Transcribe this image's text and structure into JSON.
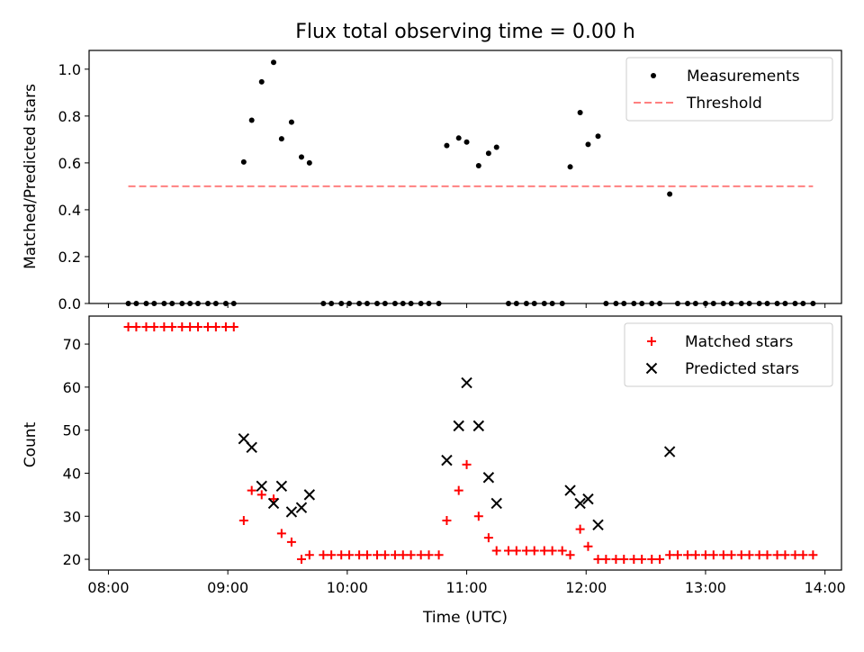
{
  "colors": {
    "matched": "#ff0000",
    "predicted": "#000000",
    "measurement": "#000000",
    "threshold": "#ff8080"
  },
  "chart_data": [
    {
      "type": "scatter",
      "title": "Flux total observing time = 0.00 h",
      "xlabel": "",
      "ylabel": "Matched/Predicted stars",
      "xlim": [
        "08:00",
        "14:00"
      ],
      "ylim": [
        0,
        1.08
      ],
      "yticks": [
        0.0,
        0.2,
        0.4,
        0.6,
        0.8,
        1.0
      ],
      "yticklabels": [
        "0.0",
        "0.2",
        "0.4",
        "0.6",
        "0.8",
        "1.0"
      ],
      "legend": "top-right",
      "grid": false,
      "series": [
        {
          "name": "Measurements",
          "marker": "dot",
          "points": [
            [
              "08:10",
              0.0
            ],
            [
              "08:14",
              0.0
            ],
            [
              "08:19",
              0.0
            ],
            [
              "08:23",
              0.0
            ],
            [
              "08:28",
              0.0
            ],
            [
              "08:32",
              0.0
            ],
            [
              "08:37",
              0.0
            ],
            [
              "08:41",
              0.0
            ],
            [
              "08:45",
              0.0
            ],
            [
              "08:50",
              0.0
            ],
            [
              "08:54",
              0.0
            ],
            [
              "08:59",
              0.0
            ],
            [
              "09:03",
              0.0
            ],
            [
              "09:08",
              0.604
            ],
            [
              "09:12",
              0.782
            ],
            [
              "09:17",
              0.946
            ],
            [
              "09:23",
              1.029
            ],
            [
              "09:27",
              0.703
            ],
            [
              "09:32",
              0.774
            ],
            [
              "09:37",
              0.625
            ],
            [
              "09:41",
              0.6
            ],
            [
              "09:48",
              0.0
            ],
            [
              "09:52",
              0.0
            ],
            [
              "09:57",
              0.0
            ],
            [
              "10:01",
              0.0
            ],
            [
              "10:06",
              0.0
            ],
            [
              "10:10",
              0.0
            ],
            [
              "10:15",
              0.0
            ],
            [
              "10:19",
              0.0
            ],
            [
              "10:24",
              0.0
            ],
            [
              "10:28",
              0.0
            ],
            [
              "10:32",
              0.0
            ],
            [
              "10:37",
              0.0
            ],
            [
              "10:41",
              0.0
            ],
            [
              "10:46",
              0.0
            ],
            [
              "10:50",
              0.674
            ],
            [
              "10:56",
              0.706
            ],
            [
              "11:00",
              0.689
            ],
            [
              "11:06",
              0.588
            ],
            [
              "11:11",
              0.641
            ],
            [
              "11:15",
              0.667
            ],
            [
              "11:21",
              0.0
            ],
            [
              "11:25",
              0.0
            ],
            [
              "11:30",
              0.0
            ],
            [
              "11:34",
              0.0
            ],
            [
              "11:39",
              0.0
            ],
            [
              "11:43",
              0.0
            ],
            [
              "11:48",
              0.0
            ],
            [
              "11:52",
              0.583
            ],
            [
              "11:57",
              0.815
            ],
            [
              "12:01",
              0.679
            ],
            [
              "12:06",
              0.714
            ],
            [
              "12:10",
              0.0
            ],
            [
              "12:15",
              0.0
            ],
            [
              "12:19",
              0.0
            ],
            [
              "12:24",
              0.0
            ],
            [
              "12:28",
              0.0
            ],
            [
              "12:33",
              0.0
            ],
            [
              "12:37",
              0.0
            ],
            [
              "12:42",
              0.467
            ],
            [
              "12:46",
              0.0
            ],
            [
              "12:51",
              0.0
            ],
            [
              "12:55",
              0.0
            ],
            [
              "13:00",
              0.0
            ],
            [
              "13:04",
              0.0
            ],
            [
              "13:09",
              0.0
            ],
            [
              "13:13",
              0.0
            ],
            [
              "13:18",
              0.0
            ],
            [
              "13:22",
              0.0
            ],
            [
              "13:27",
              0.0
            ],
            [
              "13:31",
              0.0
            ],
            [
              "13:36",
              0.0
            ],
            [
              "13:40",
              0.0
            ],
            [
              "13:45",
              0.0
            ],
            [
              "13:49",
              0.0
            ],
            [
              "13:54",
              0.0
            ]
          ]
        },
        {
          "name": "Threshold",
          "style": "dashed-line",
          "points": [
            [
              "08:10",
              0.5
            ],
            [
              "13:54",
              0.5
            ]
          ]
        }
      ]
    },
    {
      "type": "scatter",
      "title": "",
      "xlabel": "Time (UTC)",
      "ylabel": "Count",
      "xlim": [
        "08:00",
        "14:00"
      ],
      "xticks": [
        "08:00",
        "09:00",
        "10:00",
        "11:00",
        "12:00",
        "13:00",
        "14:00"
      ],
      "ylim": [
        17.5,
        76.5
      ],
      "yticks": [
        20,
        30,
        40,
        50,
        60,
        70
      ],
      "legend": "top-right",
      "grid": false,
      "series": [
        {
          "name": "Matched stars",
          "marker": "plus",
          "points": [
            [
              "08:10",
              74
            ],
            [
              "08:14",
              74
            ],
            [
              "08:19",
              74
            ],
            [
              "08:23",
              74
            ],
            [
              "08:28",
              74
            ],
            [
              "08:32",
              74
            ],
            [
              "08:37",
              74
            ],
            [
              "08:41",
              74
            ],
            [
              "08:45",
              74
            ],
            [
              "08:50",
              74
            ],
            [
              "08:54",
              74
            ],
            [
              "08:59",
              74
            ],
            [
              "09:03",
              74
            ],
            [
              "09:08",
              29
            ],
            [
              "09:12",
              36
            ],
            [
              "09:17",
              35
            ],
            [
              "09:23",
              34
            ],
            [
              "09:27",
              26
            ],
            [
              "09:32",
              24
            ],
            [
              "09:37",
              20
            ],
            [
              "09:41",
              21
            ],
            [
              "09:48",
              21
            ],
            [
              "09:52",
              21
            ],
            [
              "09:57",
              21
            ],
            [
              "10:01",
              21
            ],
            [
              "10:06",
              21
            ],
            [
              "10:10",
              21
            ],
            [
              "10:15",
              21
            ],
            [
              "10:19",
              21
            ],
            [
              "10:24",
              21
            ],
            [
              "10:28",
              21
            ],
            [
              "10:32",
              21
            ],
            [
              "10:37",
              21
            ],
            [
              "10:41",
              21
            ],
            [
              "10:46",
              21
            ],
            [
              "10:50",
              29
            ],
            [
              "10:56",
              36
            ],
            [
              "11:00",
              42
            ],
            [
              "11:06",
              30
            ],
            [
              "11:11",
              25
            ],
            [
              "11:15",
              22
            ],
            [
              "11:21",
              22
            ],
            [
              "11:25",
              22
            ],
            [
              "11:30",
              22
            ],
            [
              "11:34",
              22
            ],
            [
              "11:39",
              22
            ],
            [
              "11:43",
              22
            ],
            [
              "11:48",
              22
            ],
            [
              "11:52",
              21
            ],
            [
              "11:57",
              27
            ],
            [
              "12:01",
              23
            ],
            [
              "12:06",
              20
            ],
            [
              "12:10",
              20
            ],
            [
              "12:15",
              20
            ],
            [
              "12:19",
              20
            ],
            [
              "12:24",
              20
            ],
            [
              "12:28",
              20
            ],
            [
              "12:33",
              20
            ],
            [
              "12:37",
              20
            ],
            [
              "12:42",
              21
            ],
            [
              "12:46",
              21
            ],
            [
              "12:51",
              21
            ],
            [
              "12:55",
              21
            ],
            [
              "13:00",
              21
            ],
            [
              "13:04",
              21
            ],
            [
              "13:09",
              21
            ],
            [
              "13:13",
              21
            ],
            [
              "13:18",
              21
            ],
            [
              "13:22",
              21
            ],
            [
              "13:27",
              21
            ],
            [
              "13:31",
              21
            ],
            [
              "13:36",
              21
            ],
            [
              "13:40",
              21
            ],
            [
              "13:45",
              21
            ],
            [
              "13:49",
              21
            ],
            [
              "13:54",
              21
            ]
          ]
        },
        {
          "name": "Predicted stars",
          "marker": "x",
          "points": [
            [
              "09:08",
              48
            ],
            [
              "09:12",
              46
            ],
            [
              "09:17",
              37
            ],
            [
              "09:23",
              33
            ],
            [
              "09:27",
              37
            ],
            [
              "09:32",
              31
            ],
            [
              "09:37",
              32
            ],
            [
              "09:41",
              35
            ],
            [
              "10:50",
              43
            ],
            [
              "10:56",
              51
            ],
            [
              "11:00",
              61
            ],
            [
              "11:06",
              51
            ],
            [
              "11:11",
              39
            ],
            [
              "11:15",
              33
            ],
            [
              "11:52",
              36
            ],
            [
              "11:57",
              33
            ],
            [
              "12:01",
              34
            ],
            [
              "12:06",
              28
            ],
            [
              "12:42",
              45
            ]
          ]
        }
      ]
    }
  ]
}
